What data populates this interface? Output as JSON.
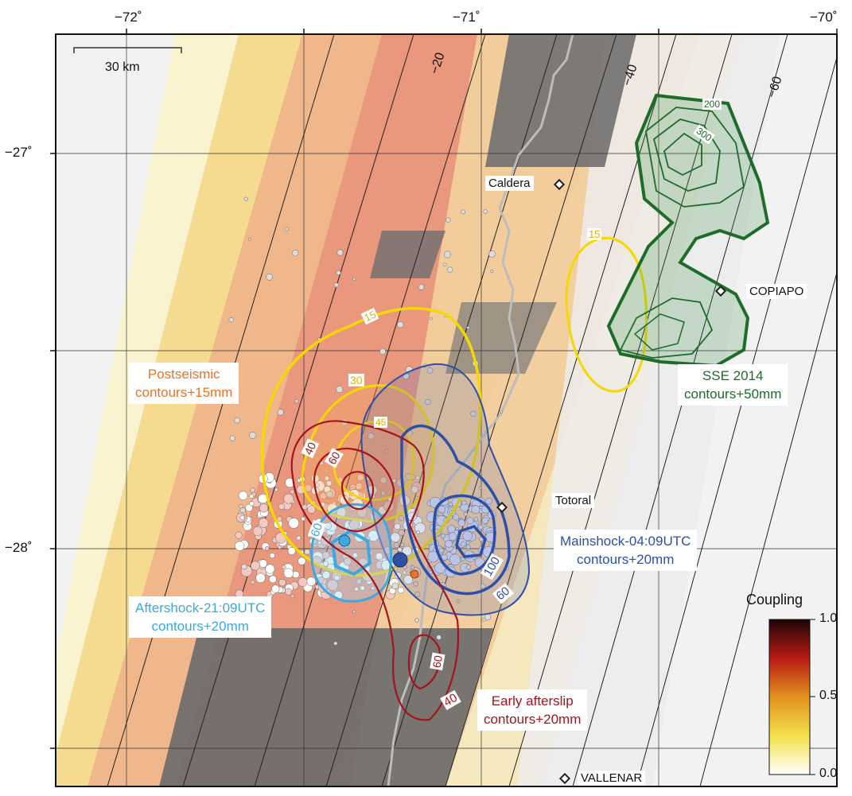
{
  "map": {
    "lon_labels": [
      "−72˚",
      "−71˚",
      "−70˚"
    ],
    "lat_labels": [
      "−27˚",
      "−28˚"
    ],
    "scale_bar": "30 km",
    "slab_depths": [
      "−20",
      "−40",
      "−60"
    ],
    "cities": [
      "Caldera",
      "COPIAPO",
      "Totoral",
      "VALLENAR"
    ],
    "legend_boxes": {
      "postseismic": [
        "Postseismic",
        "contours+15mm"
      ],
      "sse": [
        "SSE 2014",
        "contours+50mm"
      ],
      "mainshock": [
        "Mainshock-04:09UTC",
        "contours+20mm"
      ],
      "aftershock": [
        "Aftershock-21:09UTC",
        "contours+20mm"
      ],
      "afterslip": [
        "Early afterslip",
        "contours+20mm"
      ]
    },
    "contour_labels": {
      "yellow": [
        "15",
        "30",
        "45",
        "15"
      ],
      "green": [
        "200",
        "300"
      ],
      "red": [
        "40",
        "60",
        "60",
        "40"
      ],
      "cyan": [
        "60"
      ],
      "blue": [
        "100",
        "60"
      ]
    },
    "colorbar": {
      "title": "Coupling",
      "ticks": [
        "1.0",
        "0.5",
        "0.0"
      ]
    },
    "colors": {
      "postseismic": "#f5d800",
      "postseismic_text": "#e8742a",
      "sse": "#1e6b2a",
      "mainshock": "#2e4fa8",
      "aftershock": "#3ea8e0",
      "afterslip": "#a3141d"
    }
  }
}
